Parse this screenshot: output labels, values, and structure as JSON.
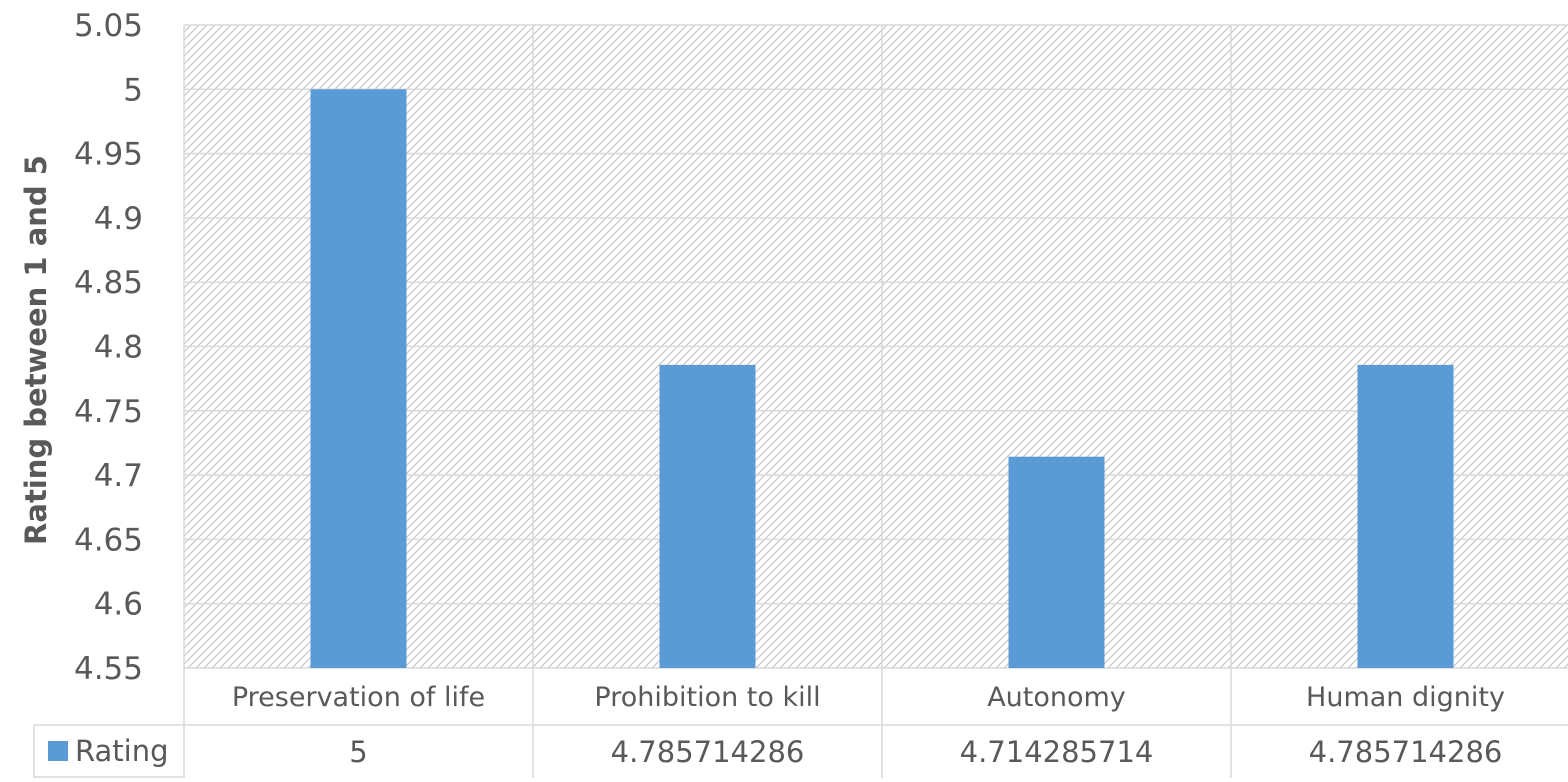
{
  "chart_data": {
    "type": "bar",
    "categories": [
      "Preservation of life",
      "Prohibition to kill",
      "Autonomy",
      "Human dignity"
    ],
    "series": [
      {
        "name": "Rating",
        "values": [
          5,
          4.785714286,
          4.714285714,
          4.785714286
        ],
        "value_labels": [
          "5",
          "4.785714286",
          "4.714285714",
          "4.785714286"
        ],
        "color": "#5b9bd5"
      }
    ],
    "ylabel": "Rating between 1 and 5",
    "xlabel": "",
    "ylim": [
      4.55,
      5.05
    ],
    "yticks": [
      "4.55",
      "4.6",
      "4.65",
      "4.7",
      "4.75",
      "4.8",
      "4.85",
      "4.9",
      "4.95",
      "5",
      "5.05"
    ],
    "grid": true,
    "data_table": true,
    "plot_background": "hatched"
  }
}
